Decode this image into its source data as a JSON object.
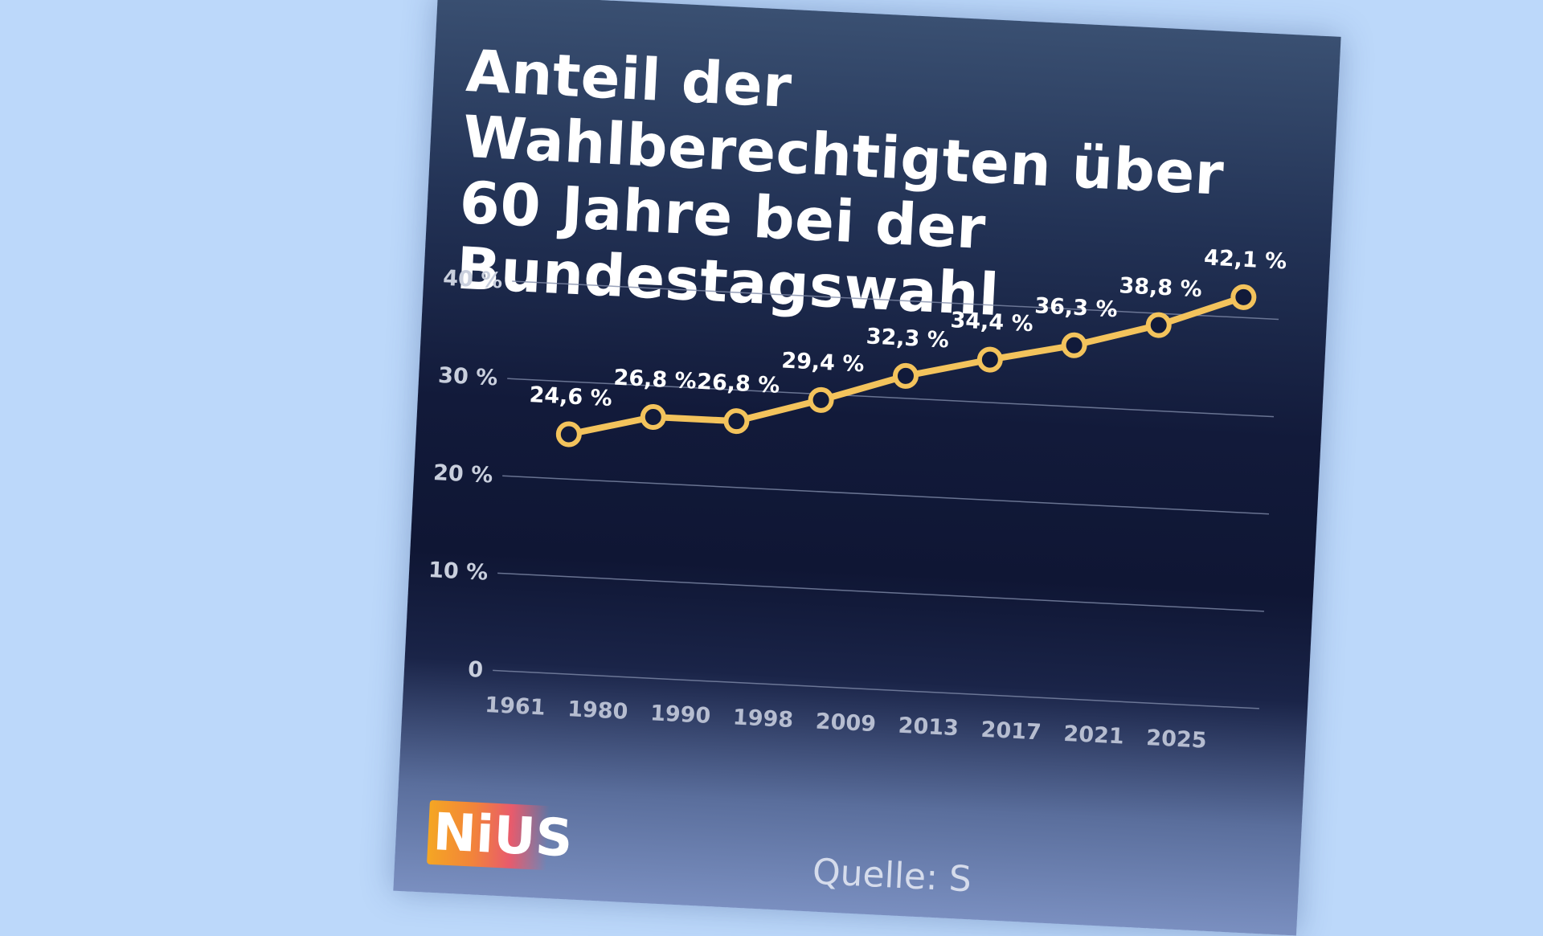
{
  "title": "Anteil der Wahlberechtigten über 60 Jahre bei der Bundestagswahl",
  "brand": {
    "logo_text": "NiUS"
  },
  "source_text": "Quelle: S",
  "colors": {
    "background": "#bcd8fa",
    "line": "#f3c35c",
    "marker_fill": "#111a3a",
    "grid": "#7f8aa8"
  },
  "chart_data": {
    "type": "line",
    "title": "Anteil der Wahlberechtigten über 60 Jahre bei der Bundestagswahl",
    "categories": [
      "1961",
      "1980",
      "1990",
      "1998",
      "2009",
      "2013",
      "2017",
      "2021",
      "2025"
    ],
    "x_positions": [
      "1961",
      "1980",
      "1990",
      "1998",
      "2009",
      "2013",
      "2017",
      "2021",
      "2025"
    ],
    "values": [
      24.6,
      26.8,
      26.8,
      29.4,
      32.3,
      34.4,
      36.3,
      38.8,
      42.1
    ],
    "data_labels": [
      "24,6 %",
      "26,8 %",
      "26,8 %",
      "29,4 %",
      "32,3 %",
      "34,4 %",
      "36,3 %",
      "38,8 %",
      "42,1 %"
    ],
    "y_ticks": [
      0,
      10,
      20,
      30,
      40
    ],
    "y_tick_labels": [
      "0",
      "10 %",
      "20 %",
      "30 %",
      "40 %"
    ],
    "ylim": [
      0,
      40
    ],
    "grid": true,
    "xlabel": "",
    "ylabel": ""
  }
}
